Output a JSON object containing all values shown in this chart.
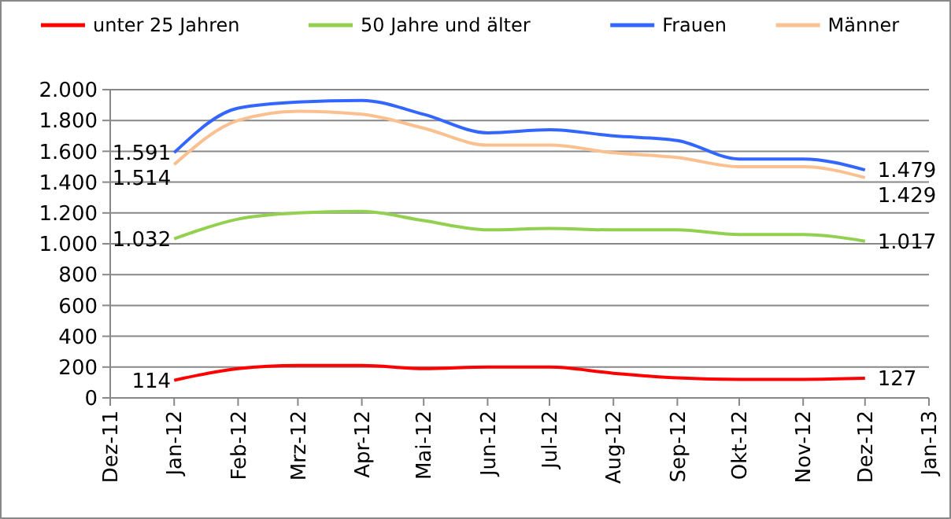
{
  "chart_data": {
    "type": "line",
    "x": [
      "2012-01",
      "2012-02",
      "2012-03",
      "2012-04",
      "2012-05",
      "2012-06",
      "2012-07",
      "2012-08",
      "2012-09",
      "2012-10",
      "2012-11",
      "2012-12"
    ],
    "series": [
      {
        "name": "unter 25 Jahren",
        "color": "#ff0000",
        "values": [
          114,
          190,
          210,
          210,
          190,
          200,
          200,
          160,
          130,
          120,
          120,
          127
        ],
        "value_labels": [
          "114",
          null,
          null,
          null,
          null,
          null,
          null,
          null,
          null,
          null,
          null,
          "127"
        ]
      },
      {
        "name": "50 Jahre und älter",
        "color": "#92d050",
        "values": [
          1032,
          1160,
          1200,
          1210,
          1150,
          1090,
          1100,
          1090,
          1090,
          1060,
          1060,
          1017
        ],
        "value_labels": [
          "1.032",
          null,
          null,
          null,
          null,
          null,
          null,
          null,
          null,
          null,
          null,
          "1.017"
        ]
      },
      {
        "name": "Frauen",
        "color": "#3366ff",
        "values": [
          1591,
          1880,
          1920,
          1930,
          1840,
          1720,
          1740,
          1700,
          1670,
          1550,
          1550,
          1479
        ],
        "value_labels": [
          "1.591",
          null,
          null,
          null,
          null,
          null,
          null,
          null,
          null,
          null,
          null,
          "1.479"
        ]
      },
      {
        "name": "Männer",
        "color": "#fac090",
        "values": [
          1514,
          1800,
          1860,
          1840,
          1750,
          1640,
          1640,
          1590,
          1560,
          1500,
          1500,
          1429
        ],
        "value_labels": [
          "1.514",
          null,
          null,
          null,
          null,
          null,
          null,
          null,
          null,
          null,
          null,
          "1.429"
        ]
      }
    ],
    "xlim": [
      "2011-12",
      "2013-01"
    ],
    "xticks": [
      {
        "value": "2011-12",
        "label": "Dez-11"
      },
      {
        "value": "2012-01",
        "label": "Jan-12"
      },
      {
        "value": "2012-02",
        "label": "Feb-12"
      },
      {
        "value": "2012-03",
        "label": "Mrz-12"
      },
      {
        "value": "2012-04",
        "label": "Apr-12"
      },
      {
        "value": "2012-05",
        "label": "Mai-12"
      },
      {
        "value": "2012-06",
        "label": "Jun-12"
      },
      {
        "value": "2012-07",
        "label": "Jul-12"
      },
      {
        "value": "2012-08",
        "label": "Aug-12"
      },
      {
        "value": "2012-09",
        "label": "Sep-12"
      },
      {
        "value": "2012-10",
        "label": "Okt-12"
      },
      {
        "value": "2012-11",
        "label": "Nov-12"
      },
      {
        "value": "2012-12",
        "label": "Dez-12"
      },
      {
        "value": "2013-01",
        "label": "Jan-13"
      }
    ],
    "ylim": [
      0,
      2000
    ],
    "yticks": [
      0,
      200,
      400,
      600,
      800,
      {
        "value": 1000,
        "label": "1.000"
      },
      {
        "value": 1200,
        "label": "1.200"
      },
      {
        "value": 1400,
        "label": "1.400"
      },
      {
        "value": 1600,
        "label": "1.600"
      },
      {
        "value": 1800,
        "label": "1.800"
      },
      {
        "value": 2000,
        "label": "2.000"
      }
    ],
    "grid": "y",
    "legend": "top",
    "marker": "none",
    "line_style": "solid"
  }
}
